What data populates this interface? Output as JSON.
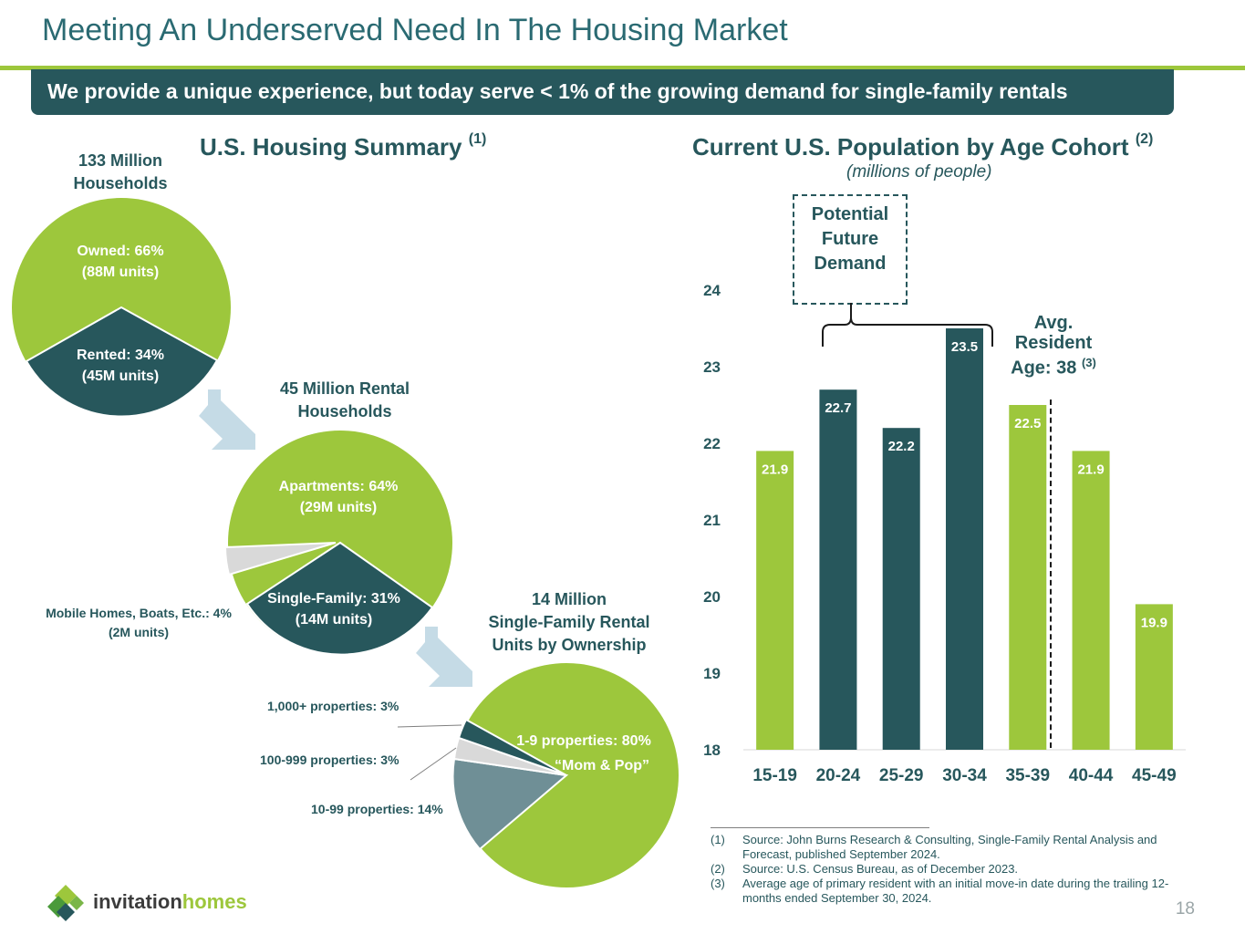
{
  "title": "Meeting An Underserved Need In The Housing Market",
  "banner": "We provide a unique experience, but today serve < 1% of the growing demand for single-family rentals",
  "housing": {
    "heading": "U.S. Housing Summary",
    "heading_note": "(1)",
    "pie1": {
      "label_line1": "133 Million",
      "label_line2": "Households",
      "owned_line1": "Owned: 66%",
      "owned_line2": "(88M units)",
      "rented_line1": "Rented: 34%",
      "rented_line2": "(45M units)",
      "slices": [
        {
          "name": "Owned",
          "percent": 66
        },
        {
          "name": "Rented",
          "percent": 34
        }
      ]
    },
    "pie2": {
      "label_line1": "45 Million Rental",
      "label_line2": "Households",
      "apartments_line1": "Apartments: 64%",
      "apartments_line2": "(29M units)",
      "sf_line1": "Single-Family: 31%",
      "sf_line2": "(14M units)",
      "mobile_line1": "Mobile Homes, Boats, Etc.: 4%",
      "mobile_line2": "(2M units)",
      "slices": [
        {
          "name": "Apartments",
          "percent": 64
        },
        {
          "name": "Single-Family",
          "percent": 31
        },
        {
          "name": "Mobile Homes, Boats, Etc.",
          "percent": 4
        }
      ]
    },
    "pie3": {
      "label_line1": "14 Million",
      "label_line2": "Single-Family Rental",
      "label_line3": "Units by Ownership",
      "main_line1": "1-9 properties: 80%",
      "main_line2": "“Mom & Pop”",
      "l1000": "1,000+ properties: 3%",
      "l100": "100-999 properties: 3%",
      "l10": "10-99 properties: 14%",
      "slices": [
        {
          "name": "1-9 properties",
          "percent": 80
        },
        {
          "name": "10-99 properties",
          "percent": 14
        },
        {
          "name": "100-999 properties",
          "percent": 3
        },
        {
          "name": "1,000+ properties",
          "percent": 3
        }
      ]
    }
  },
  "population": {
    "heading": "Current U.S. Population by Age Cohort",
    "heading_note": "(2)",
    "subheading": "(millions of people)",
    "potential_line1": "Potential",
    "potential_line2": "Future",
    "potential_line3": "Demand",
    "avg_line1": "Avg.",
    "avg_line2": "Resident",
    "avg_line3": "Age: 38",
    "avg_note": "(3)"
  },
  "chart_data": {
    "type": "bar",
    "title": "Current U.S. Population by Age Cohort",
    "subtitle": "(millions of people)",
    "categories": [
      "15-19",
      "20-24",
      "25-29",
      "30-34",
      "35-39",
      "40-44",
      "45-49"
    ],
    "values": [
      21.9,
      22.7,
      22.2,
      23.5,
      22.5,
      21.9,
      19.9
    ],
    "value_labels": [
      "21.9",
      "22.7",
      "22.2",
      "23.5",
      "22.5",
      "21.9",
      "19.9"
    ],
    "bar_colors": [
      "#9dc73c",
      "#27575c",
      "#27575c",
      "#27575c",
      "#9dc73c",
      "#9dc73c",
      "#9dc73c"
    ],
    "ylim": [
      18,
      24
    ],
    "yticks": [
      "18",
      "19",
      "20",
      "21",
      "22",
      "23",
      "24"
    ],
    "grid": false,
    "legend": "none"
  },
  "colors": {
    "green": "#9dc73c",
    "teal": "#27575c",
    "grey": "#d9d9d9",
    "slate": "#6f8f96",
    "arrow": "#c5dbe6"
  },
  "footnotes": [
    {
      "num": "(1)",
      "line1": "Source: John Burns Research & Consulting, Single-Family Rental Analysis and",
      "line2": "Forecast, published September 2024."
    },
    {
      "num": "(2)",
      "line1": "Source: U.S. Census Bureau, as of December 2023.",
      "line2": ""
    },
    {
      "num": "(3)",
      "line1": "Average age of primary resident with an initial move-in date during the trailing 12-",
      "line2": "months ended September 30, 2024."
    }
  ],
  "logo": {
    "word1": "invitation",
    "word2": "homes"
  },
  "page_number": "18"
}
